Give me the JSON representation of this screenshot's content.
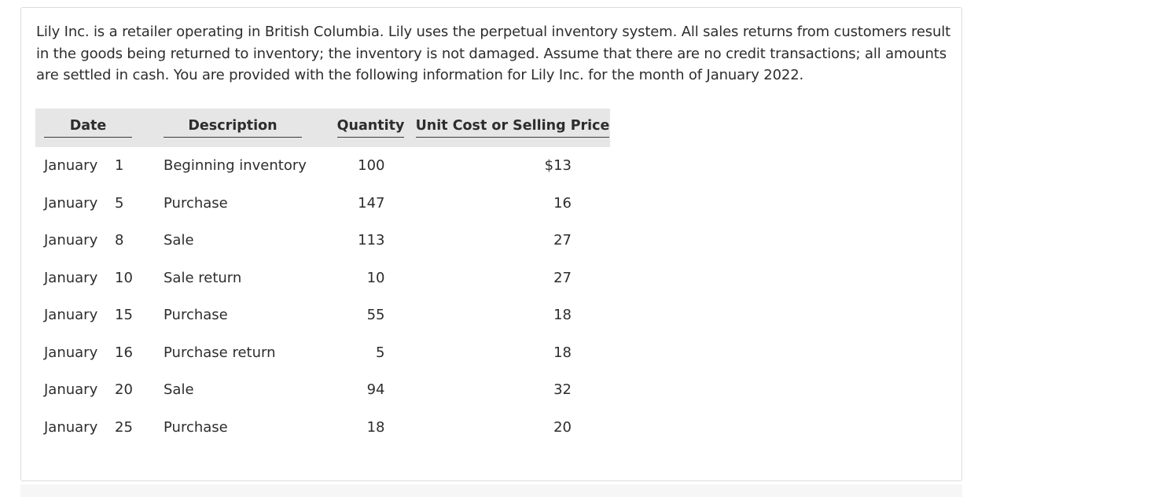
{
  "intro": "Lily Inc. is a retailer operating in British Columbia. Lily uses the perpetual inventory system. All sales returns from customers result in the goods being returned to inventory; the inventory is not damaged. Assume that there are no credit transactions; all amounts are settled in cash. You are provided with the following information for Lily Inc. for the month of January 2022.",
  "table": {
    "headers": {
      "date": "Date",
      "description": "Description",
      "quantity": "Quantity",
      "price": "Unit Cost or Selling Price"
    },
    "rows": [
      {
        "month": "January",
        "day": "1",
        "description": "Beginning inventory",
        "quantity": "100",
        "price": "$13"
      },
      {
        "month": "January",
        "day": "5",
        "description": "Purchase",
        "quantity": "147",
        "price": "16"
      },
      {
        "month": "January",
        "day": "8",
        "description": "Sale",
        "quantity": "113",
        "price": "27"
      },
      {
        "month": "January",
        "day": "10",
        "description": "Sale return",
        "quantity": "10",
        "price": "27"
      },
      {
        "month": "January",
        "day": "15",
        "description": "Purchase",
        "quantity": "55",
        "price": "18"
      },
      {
        "month": "January",
        "day": "16",
        "description": "Purchase return",
        "quantity": "5",
        "price": "18"
      },
      {
        "month": "January",
        "day": "20",
        "description": "Sale",
        "quantity": "94",
        "price": "32"
      },
      {
        "month": "January",
        "day": "25",
        "description": "Purchase",
        "quantity": "18",
        "price": "20"
      }
    ]
  }
}
